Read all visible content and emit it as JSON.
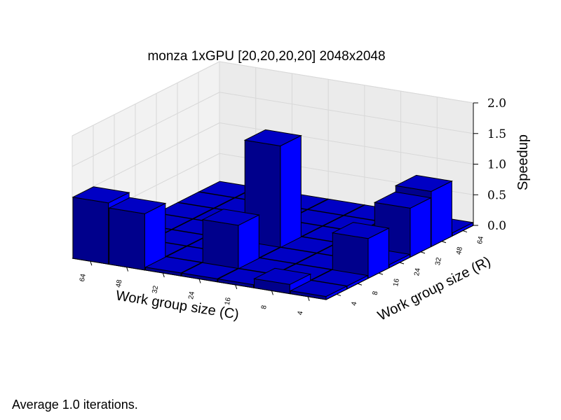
{
  "title": "monza 1xGPU [20,20,20,20] 2048x2048",
  "footer": "Average 1.0 iterations.",
  "chart_data": {
    "type": "bar3d",
    "title": "monza 1xGPU [20,20,20,20] 2048x2048",
    "xlabel": "Work group size (C)",
    "ylabel": "Work group size (R)",
    "zlabel": "Speedup",
    "x_categories": [
      "64",
      "48",
      "32",
      "24",
      "16",
      "8",
      "4"
    ],
    "y_categories": [
      "4",
      "8",
      "16",
      "24",
      "32",
      "48",
      "64"
    ],
    "zlim": [
      0.0,
      2.0
    ],
    "z_ticks": [
      "0.0",
      "0.5",
      "1.0",
      "1.5",
      "2.0"
    ],
    "grid": true,
    "bar_color": "#0000ff",
    "bars": [
      {
        "c": "64",
        "r": "4",
        "value": 1.0
      },
      {
        "c": "48",
        "r": "4",
        "value": 0.92
      },
      {
        "c": "24",
        "r": "8",
        "value": 0.75
      },
      {
        "c": "24",
        "r": "24",
        "value": 1.7
      },
      {
        "c": "8",
        "r": "4",
        "value": 0.15
      },
      {
        "c": "4",
        "r": "16",
        "value": 0.65
      },
      {
        "c": "4",
        "r": "32",
        "value": 0.8
      },
      {
        "c": "4",
        "r": "48",
        "value": 0.9
      }
    ],
    "floor_value": 0.05
  }
}
